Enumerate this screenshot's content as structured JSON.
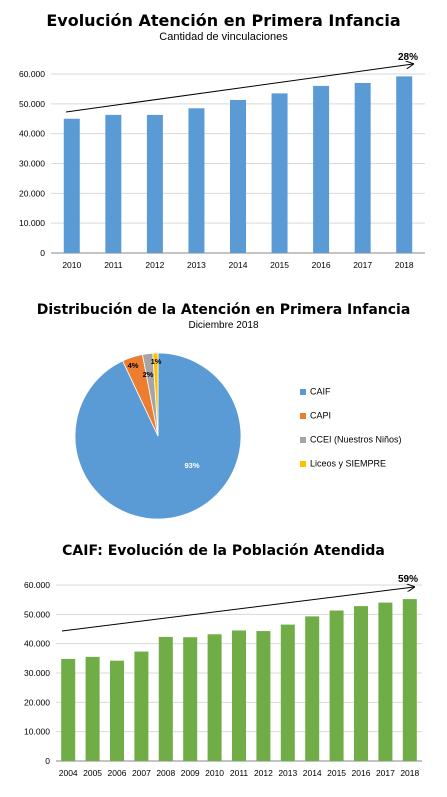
{
  "chart_data": [
    {
      "type": "bar",
      "title": "Evolución  Atención  en  Primera  Infancia",
      "subtitle": "Cantidad de vinculaciones",
      "categories": [
        "2010",
        "2011",
        "2012",
        "2013",
        "2014",
        "2015",
        "2016",
        "2017",
        "2018"
      ],
      "values": [
        45000,
        46300,
        46300,
        48500,
        51300,
        53500,
        56000,
        57000,
        59200
      ],
      "ylim": [
        0,
        60000
      ],
      "yticks": [
        "0",
        "10.000",
        "20.000",
        "30.000",
        "40.000",
        "50.000",
        "60.000"
      ],
      "trend_label": "28%",
      "bar_color": "#5b9bd5",
      "grid": true
    },
    {
      "type": "pie",
      "title": "Distribución de la Atención en Primera Infancia",
      "subtitle": "Diciembre 2018",
      "labels": [
        "CAIF",
        "CAPI",
        "CCEI (Nuestros Niños)",
        "Liceos y SIEMPRE"
      ],
      "values": [
        93,
        4,
        2,
        1
      ],
      "value_labels": [
        "93%",
        "4%",
        "2%",
        "1%"
      ],
      "colors": [
        "#5b9bd5",
        "#ed7d31",
        "#a5a5a5",
        "#ffc000"
      ],
      "legend_position": "right"
    },
    {
      "type": "bar",
      "title": "CAIF: Evolución  de  la  Población  Atendida",
      "categories": [
        "2004",
        "2005",
        "2006",
        "2007",
        "2008",
        "2009",
        "2010",
        "2011",
        "2012",
        "2013",
        "2014",
        "2015",
        "2016",
        "2017",
        "2018"
      ],
      "values": [
        34800,
        35500,
        34200,
        37300,
        42300,
        42200,
        43200,
        44500,
        44300,
        46500,
        49300,
        51300,
        52800,
        54000,
        55200
      ],
      "ylim": [
        0,
        60000
      ],
      "yticks": [
        "0",
        "10.000",
        "20.000",
        "30.000",
        "40.000",
        "50.000",
        "60.000"
      ],
      "trend_label": "59%",
      "bar_color": "#70ad47",
      "grid": true
    }
  ]
}
